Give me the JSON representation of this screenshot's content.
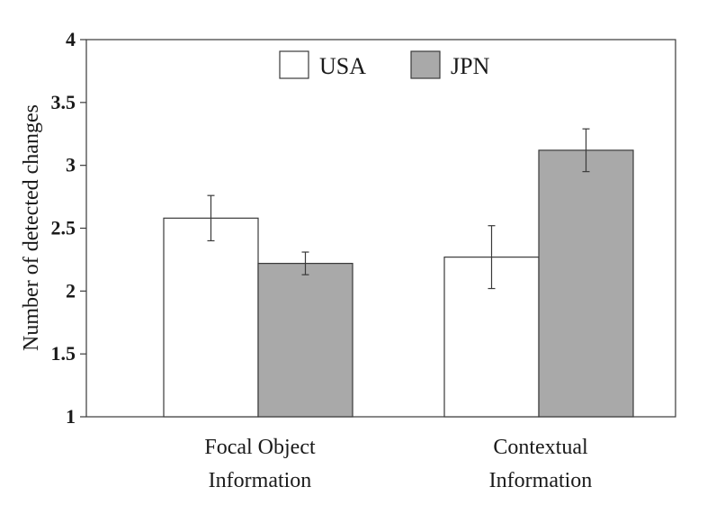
{
  "chart_data": {
    "type": "bar",
    "ylabel": "Number of detected changes",
    "xlabel": "",
    "ylim": [
      1,
      4
    ],
    "yticks": [
      "1",
      "1.5",
      "2",
      "2.5",
      "3",
      "3.5",
      "4"
    ],
    "categories": [
      [
        "Focal Object",
        "Information"
      ],
      [
        "Contextual",
        "Information"
      ]
    ],
    "series": [
      {
        "name": "USA",
        "color": "#ffffff",
        "values": [
          2.58,
          2.27
        ],
        "error": [
          0.18,
          0.25
        ]
      },
      {
        "name": "JPN",
        "color": "#a9a9a9",
        "values": [
          2.22,
          3.12
        ],
        "error": [
          0.09,
          0.17
        ]
      }
    ],
    "legend_position": "top-center",
    "grid": false
  }
}
